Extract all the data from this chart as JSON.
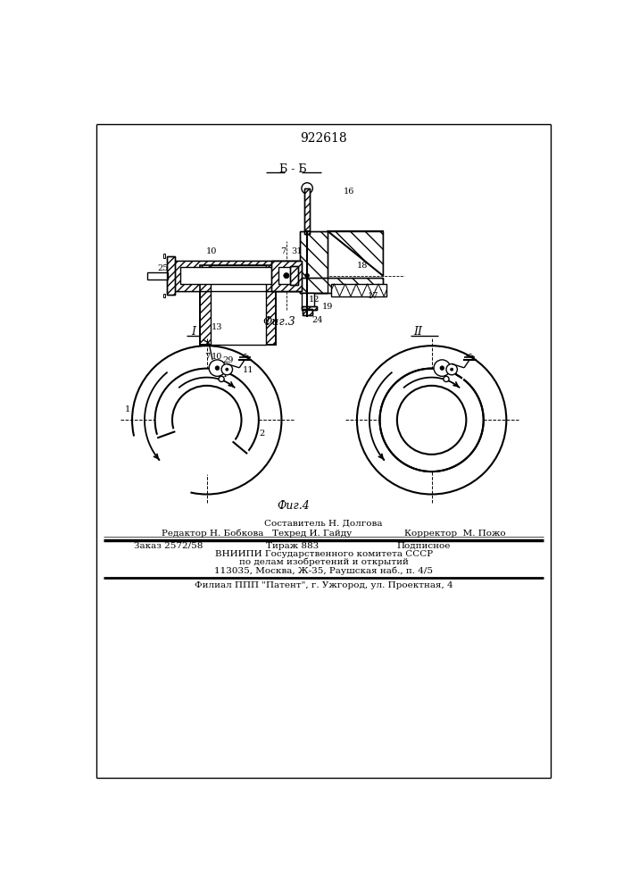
{
  "title": "922618",
  "fig3_label": "Фиг.3",
  "fig4_label": "Фиг.4",
  "section_label": "Б - Б",
  "bg_color": "#ffffff",
  "footer_line1": "Составитель Н. Долгова",
  "footer_line2_left": "Редактор Н. Бобкова",
  "footer_line2_mid": "Техред И. Гайду",
  "footer_line2_right": "Корректор  М. Пожо",
  "footer_line3_left": "Заказ 2572/58",
  "footer_line3_mid": "Тираж 883",
  "footer_line3_right": "Подписное",
  "footer_line4": "ВНИИПИ Государственного комитета СССР",
  "footer_line5": "по делам изобретений и открытий",
  "footer_line6": "113035, Москва, Ж-35, Раушская наб., п. 4/5",
  "footer_line7": "Филиал ППП \"Патент\", г. Ужгород, ул. Проектная, 4"
}
